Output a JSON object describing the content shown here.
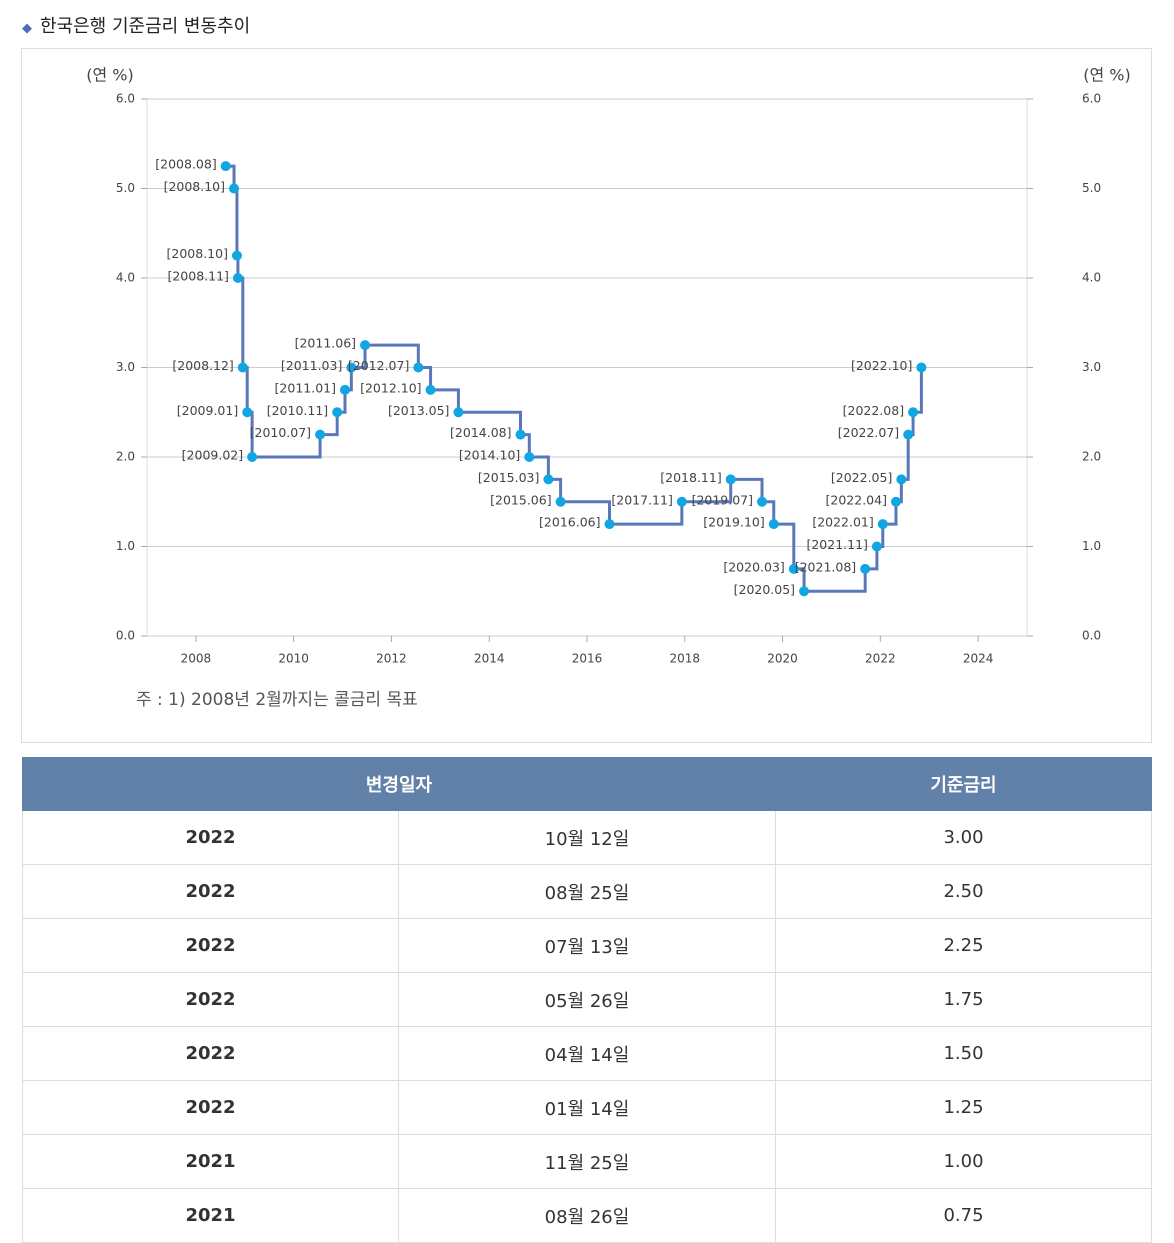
{
  "title": "한국은행 기준금리 변동추이",
  "chart_data": {
    "type": "step-line",
    "y_label": "(연 %)",
    "y2_label": "(연 %)",
    "color": "#5a78b9",
    "marker_color": "#10a5e3",
    "grid": true,
    "x": [
      2008.61,
      2008.78,
      2008.84,
      2008.86,
      2008.96,
      2009.05,
      2009.15,
      2010.54,
      2010.89,
      2011.05,
      2011.18,
      2011.46,
      2012.55,
      2012.8,
      2013.37,
      2014.64,
      2014.82,
      2015.21,
      2015.46,
      2016.46,
      2017.94,
      2018.94,
      2019.58,
      2019.82,
      2020.23,
      2020.44,
      2021.69,
      2021.93,
      2022.05,
      2022.32,
      2022.43,
      2022.57,
      2022.67,
      2022.84
    ],
    "values": [
      5.25,
      5.0,
      4.25,
      4.0,
      3.0,
      2.5,
      2.0,
      2.25,
      2.5,
      2.75,
      3.0,
      3.25,
      3.0,
      2.75,
      2.5,
      2.25,
      2.0,
      1.75,
      1.5,
      1.25,
      1.5,
      1.75,
      1.5,
      1.25,
      0.75,
      0.5,
      0.75,
      1.0,
      1.25,
      1.5,
      1.75,
      2.25,
      2.5,
      3.0
    ],
    "point_labels": [
      "[2008.08]",
      "[2008.10]",
      "[2008.10]",
      "[2008.11]",
      "[2008.12]",
      "[2009.01]",
      "[2009.02]",
      "[2010.07]",
      "[2010.11]",
      "[2011.01]",
      "[2011.03]",
      "[2011.06]",
      "[2012.07]",
      "[2012.10]",
      "[2013.05]",
      "[2014.08]",
      "[2014.10]",
      "[2015.03]",
      "[2015.06]",
      "[2016.06]",
      "[2017.11]",
      "[2018.11]",
      "[2019.07]",
      "[2019.10]",
      "[2020.03]",
      "[2020.05]",
      "[2021.08]",
      "[2021.11]",
      "[2022.01]",
      "[2022.04]",
      "[2022.05]",
      "[2022.07]",
      "[2022.08]",
      "[2022.10]"
    ],
    "xlim": [
      2007,
      2025
    ],
    "xticks": [
      2008,
      2010,
      2012,
      2014,
      2016,
      2018,
      2020,
      2022,
      2024
    ],
    "ylim": [
      0,
      6
    ],
    "yticks": [
      {
        "value": 0,
        "label": "0.0"
      },
      {
        "value": 1,
        "label": "1.0"
      },
      {
        "value": 2,
        "label": "2.0"
      },
      {
        "value": 3,
        "label": "3.0"
      },
      {
        "value": 4,
        "label": "4.0"
      },
      {
        "value": 5,
        "label": "5.0"
      },
      {
        "value": 6,
        "label": "6.0"
      }
    ],
    "y2lim": [
      0,
      6
    ],
    "y2ticks": [
      {
        "value": 0,
        "label": "0.0"
      },
      {
        "value": 1,
        "label": "1.0"
      },
      {
        "value": 2,
        "label": "2.0"
      },
      {
        "value": 3,
        "label": "3.0"
      },
      {
        "value": 4,
        "label": "4.0"
      },
      {
        "value": 5,
        "label": "5.0"
      },
      {
        "value": 6,
        "label": "6.0"
      }
    ]
  },
  "note": "주 : 1) 2008년 2월까지는 콜금리 목표",
  "table": {
    "header": [
      "변경일자",
      "기준금리"
    ],
    "rows": [
      [
        "2022",
        "10월 12일",
        "3.00"
      ],
      [
        "2022",
        "08월 25일",
        "2.50"
      ],
      [
        "2022",
        "07월 13일",
        "2.25"
      ],
      [
        "2022",
        "05월 26일",
        "1.75"
      ],
      [
        "2022",
        "04월 14일",
        "1.50"
      ],
      [
        "2022",
        "01월 14일",
        "1.25"
      ],
      [
        "2021",
        "11월 25일",
        "1.00"
      ],
      [
        "2021",
        "08월 26일",
        "0.75"
      ]
    ]
  }
}
